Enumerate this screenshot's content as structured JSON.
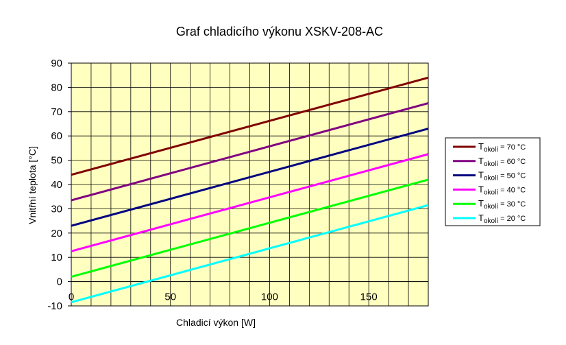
{
  "chart_data": {
    "type": "line",
    "title": "Graf chladicího výkonu XSKV-208-AC",
    "xlabel": "Chladicí výkon [W]",
    "ylabel": "Vnitřní teplota [°C]",
    "xlim": [
      0,
      180
    ],
    "ylim": [
      -10,
      90
    ],
    "x_ticks": [
      0,
      50,
      100,
      150
    ],
    "y_ticks": [
      -10,
      0,
      10,
      20,
      30,
      40,
      50,
      60,
      70,
      80,
      90
    ],
    "grid": true,
    "legend_position": "right",
    "plot_background": "#FFFFC0",
    "series": [
      {
        "name": "T okolí = 70 °C",
        "legend_main": "T",
        "legend_sub": "okolí",
        "legend_rest": " = 70 °C",
        "color": "#800000",
        "x": [
          0,
          180
        ],
        "y": [
          44,
          84
        ]
      },
      {
        "name": "T okolí = 60 °C",
        "legend_main": "T",
        "legend_sub": "okolí",
        "legend_rest": " = 60 °C",
        "color": "#800080",
        "x": [
          0,
          180
        ],
        "y": [
          33.5,
          73.5
        ]
      },
      {
        "name": "T okolí = 50 °C",
        "legend_main": "T",
        "legend_sub": "okolí",
        "legend_rest": " = 50 °C",
        "color": "#000080",
        "x": [
          0,
          180
        ],
        "y": [
          23,
          63
        ]
      },
      {
        "name": "T okolí = 40 °C",
        "legend_main": "T",
        "legend_sub": "okolí",
        "legend_rest": " = 40 °C",
        "color": "#FF00FF",
        "x": [
          0,
          180
        ],
        "y": [
          12.5,
          52.5
        ]
      },
      {
        "name": "T okolí = 30 °C",
        "legend_main": "T",
        "legend_sub": "okolí",
        "legend_rest": " = 30 °C",
        "color": "#00FF00",
        "x": [
          0,
          180
        ],
        "y": [
          2,
          42
        ]
      },
      {
        "name": "T okolí = 20 °C",
        "legend_main": "T",
        "legend_sub": "okolí",
        "legend_rest": " = 20 °C",
        "color": "#00FFFF",
        "x": [
          0,
          180
        ],
        "y": [
          -8.5,
          31.5
        ]
      }
    ]
  }
}
